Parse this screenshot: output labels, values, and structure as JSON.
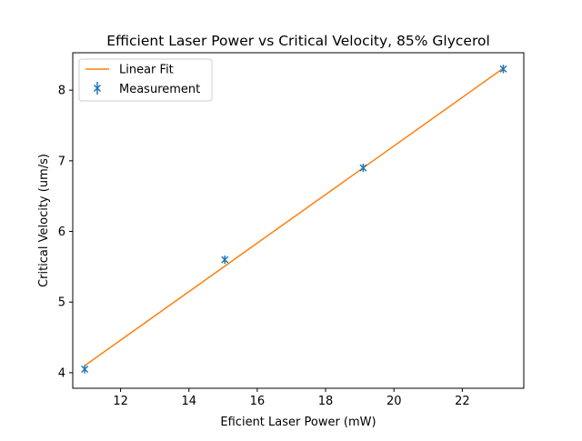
{
  "chart_data": {
    "type": "scatter",
    "title": "Efficient Laser Power vs Critical Velocity, 85% Glycerol",
    "xlabel": "Eficient Laser Power (mW)",
    "ylabel": "Critical Velocity (um/s)",
    "xlim": [
      10.6,
      23.8
    ],
    "ylim": [
      3.78,
      8.53
    ],
    "xticks": [
      12,
      14,
      16,
      18,
      20,
      22
    ],
    "yticks": [
      4,
      5,
      6,
      7,
      8
    ],
    "grid": false,
    "legend_position": "top-left",
    "series": [
      {
        "name": "Linear Fit",
        "kind": "line",
        "color": "#ff7f0e",
        "x": [
          10.95,
          23.2
        ],
        "y": [
          4.1,
          8.31
        ]
      },
      {
        "name": "Measurement",
        "kind": "errorbar",
        "color": "#1f77b4",
        "marker": "x",
        "x": [
          10.95,
          15.05,
          19.1,
          23.2
        ],
        "y": [
          4.05,
          5.6,
          6.9,
          8.3
        ],
        "yerr": [
          0.06,
          0.06,
          0.06,
          0.06
        ]
      }
    ]
  }
}
